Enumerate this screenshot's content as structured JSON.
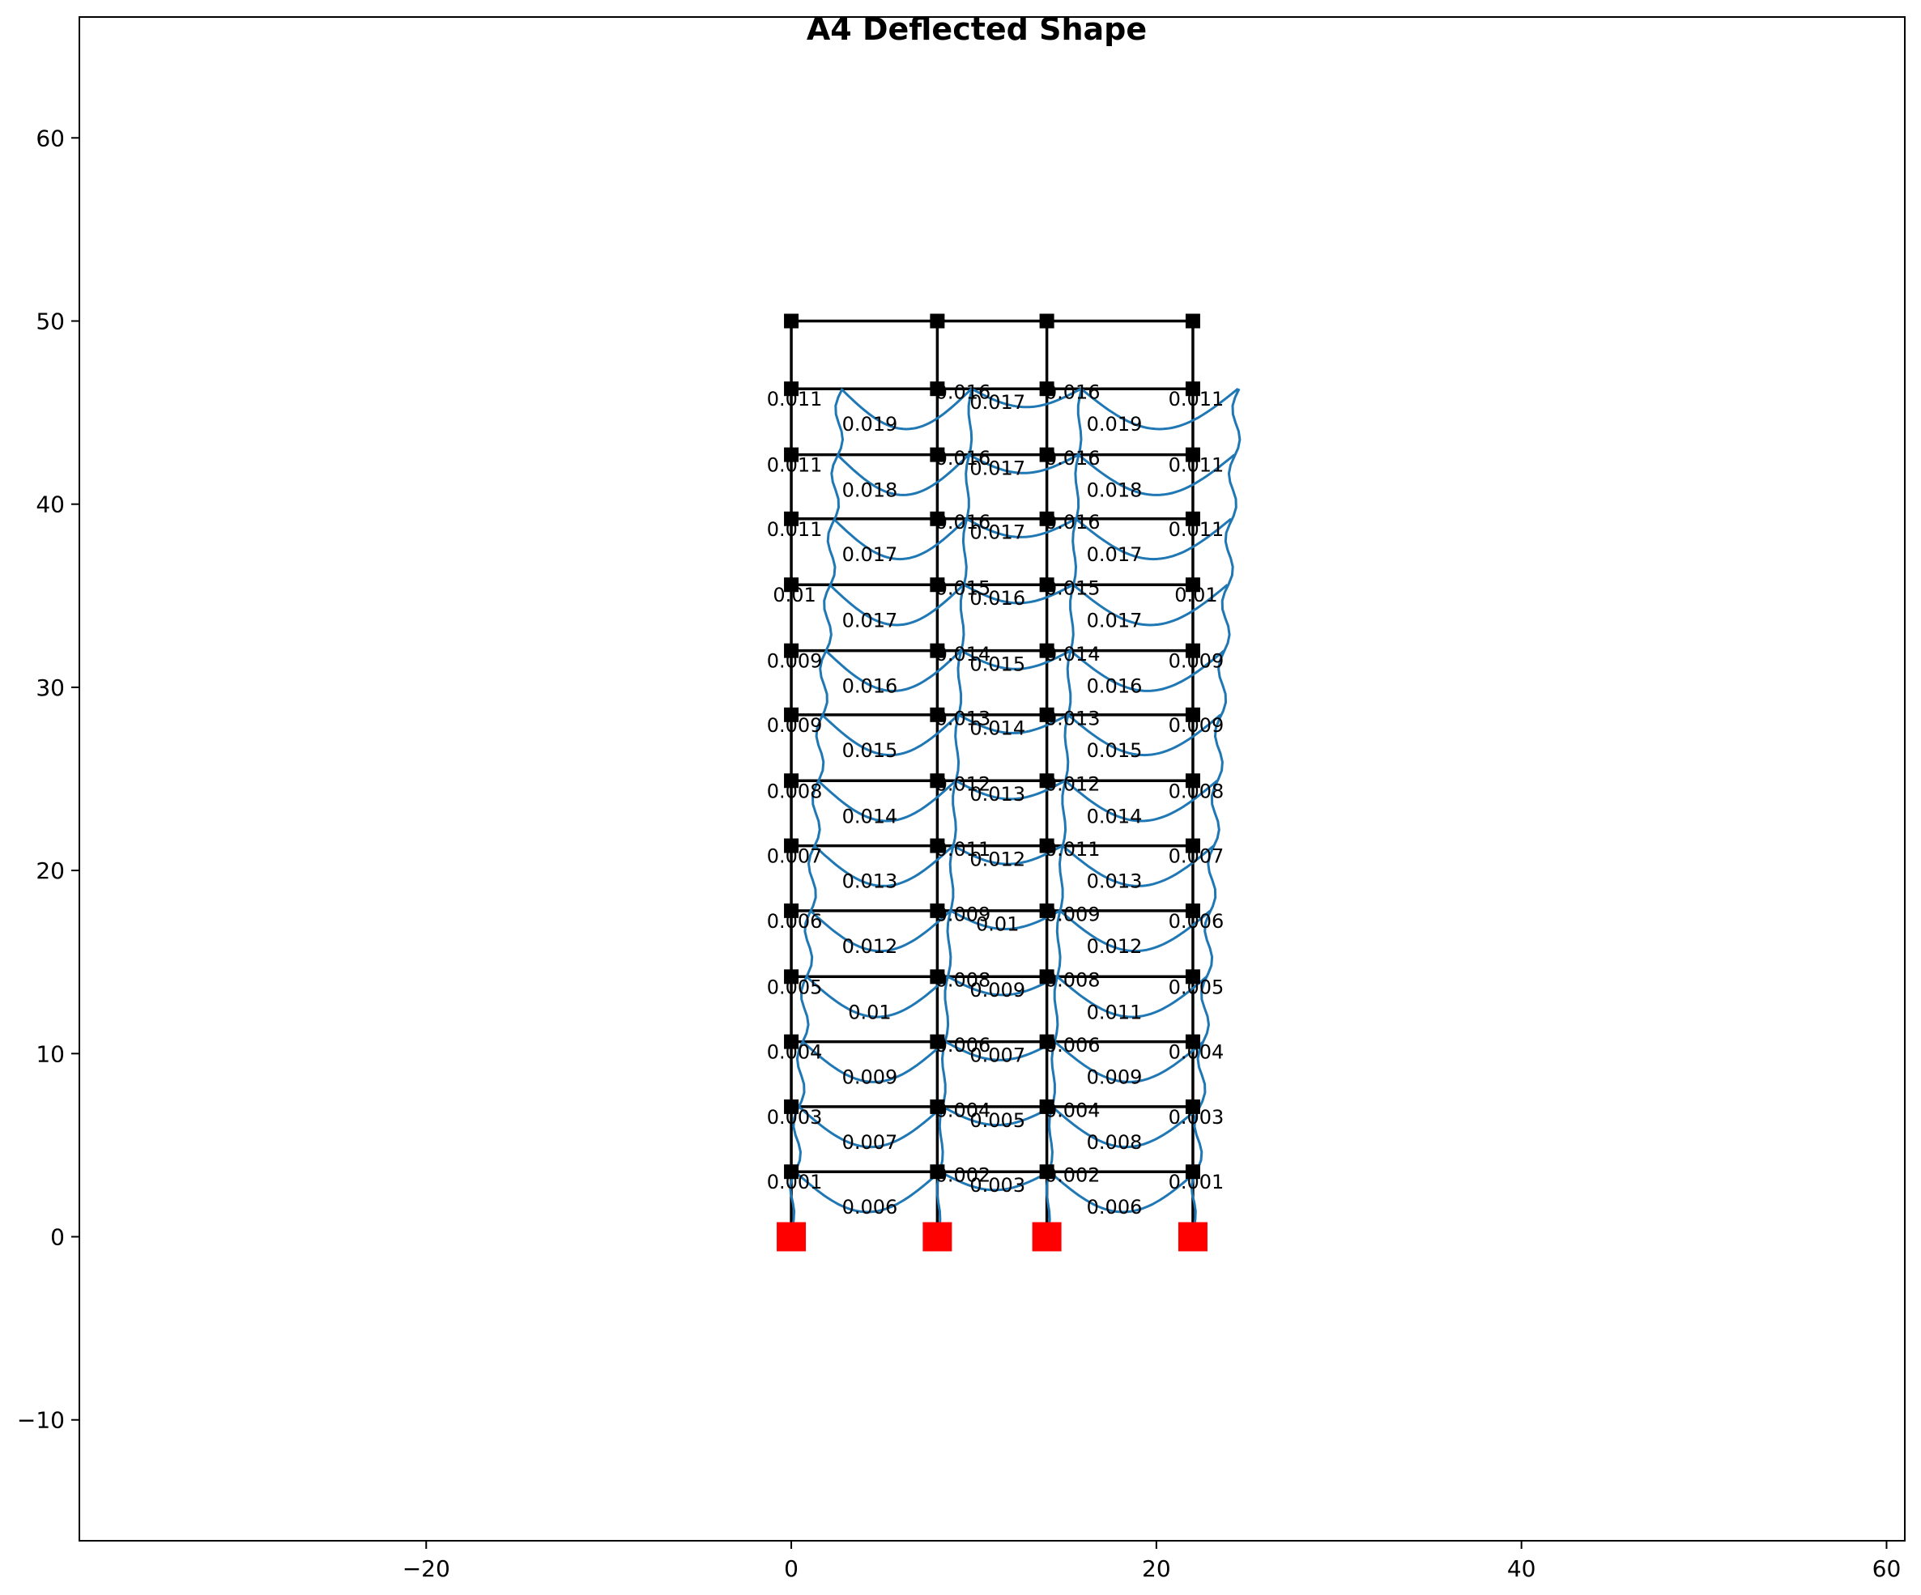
{
  "chart_data": {
    "type": "line",
    "title": "A4 Deflected Shape",
    "xlabel": "",
    "ylabel": "",
    "xlim": [
      -39,
      61
    ],
    "ylim": [
      -16.6,
      66.6
    ],
    "x_ticks": [
      -20,
      0,
      20,
      40,
      60
    ],
    "y_ticks": [
      -10,
      0,
      10,
      20,
      30,
      40,
      50,
      60
    ],
    "x_tick_labels": [
      "−20",
      "0",
      "20",
      "40",
      "60"
    ],
    "y_tick_labels": [
      "−10",
      "0",
      "10",
      "20",
      "30",
      "40",
      "50",
      "60"
    ],
    "grid": false,
    "legend": "none",
    "columns_x": [
      0,
      8,
      14,
      22
    ],
    "floor_levels": [
      3.55,
      7.1,
      10.65,
      14.2,
      17.8,
      21.35,
      24.9,
      28.5,
      32.0,
      35.6,
      39.2,
      42.7,
      46.3,
      50.0
    ],
    "support_level": 0,
    "end_drift_labels": [
      "0.001",
      "0.003",
      "0.004",
      "0.005",
      "0.006",
      "0.007",
      "0.008",
      "0.009",
      "0.009",
      "0.01",
      "0.011",
      "0.011",
      "0.011"
    ],
    "bay_labels": {
      "left": [
        "0.006",
        "0.007",
        "0.009",
        "0.01",
        "0.012",
        "0.013",
        "0.014",
        "0.015",
        "0.016",
        "0.017",
        "0.017",
        "0.018",
        "0.019"
      ],
      "center": [
        "0.003",
        "0.005",
        "0.007",
        "0.009",
        "0.01",
        "0.012",
        "0.013",
        "0.014",
        "0.015",
        "0.016",
        "0.017",
        "0.017",
        "0.017"
      ],
      "right": [
        "0.006",
        "0.008",
        "0.009",
        "0.011",
        "0.012",
        "0.013",
        "0.014",
        "0.015",
        "0.016",
        "0.017",
        "0.017",
        "0.018",
        "0.019"
      ]
    },
    "interior_node_labels": [
      "0.002",
      "0.004",
      "0.006",
      "0.008",
      "0.009",
      "0.011",
      "0.012",
      "0.013",
      "0.014",
      "0.015",
      "0.016",
      "0.016",
      "0.016"
    ],
    "colors": {
      "frame": "#000000",
      "node": "#000000",
      "support": "#ff0000",
      "deflected": "#1f77b4"
    }
  }
}
